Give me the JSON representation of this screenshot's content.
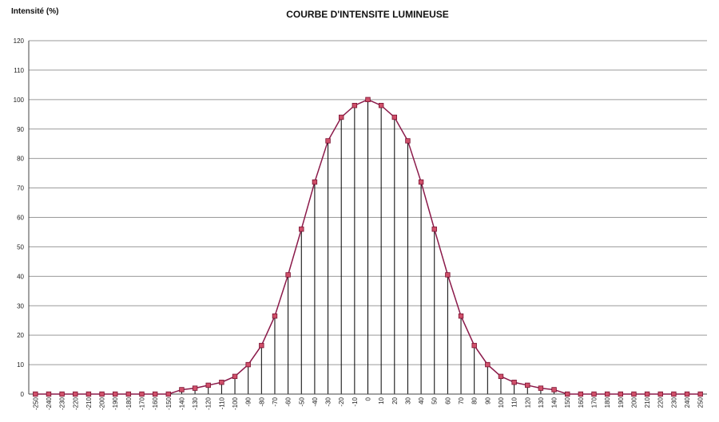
{
  "chart_data": {
    "type": "line",
    "title": "COURBE D'INTENSITE LUMINEUSE",
    "ylabel": "Intensité (%)",
    "xlabel": "",
    "ylim": [
      0,
      120
    ],
    "yticks": [
      0,
      10,
      20,
      30,
      40,
      50,
      60,
      70,
      80,
      90,
      100,
      110,
      120
    ],
    "grid": "horizontal",
    "drop_lines": true,
    "line_color": "#8b1a4a",
    "marker_color": "#d0506a",
    "x": [
      -250,
      -240,
      -230,
      -220,
      -210,
      -200,
      -190,
      -180,
      -170,
      -160,
      -150,
      -140,
      -130,
      -120,
      -110,
      -100,
      -90,
      -80,
      -70,
      -60,
      -50,
      -40,
      -30,
      -20,
      -10,
      0,
      10,
      20,
      30,
      40,
      50,
      60,
      70,
      80,
      90,
      100,
      110,
      120,
      130,
      140,
      150,
      160,
      170,
      180,
      190,
      200,
      210,
      220,
      230,
      240,
      250
    ],
    "y": [
      0,
      0,
      0,
      0,
      0,
      0,
      0,
      0,
      0,
      0,
      0,
      1.5,
      2,
      3,
      4,
      6,
      10,
      16.5,
      26.5,
      40.5,
      56,
      72,
      86,
      94,
      98,
      100,
      98,
      94,
      86,
      72,
      56,
      40.5,
      26.5,
      16.5,
      10,
      6,
      4,
      3,
      2,
      1.5,
      0,
      0,
      0,
      0,
      0,
      0,
      0,
      0,
      0,
      0,
      0
    ]
  }
}
